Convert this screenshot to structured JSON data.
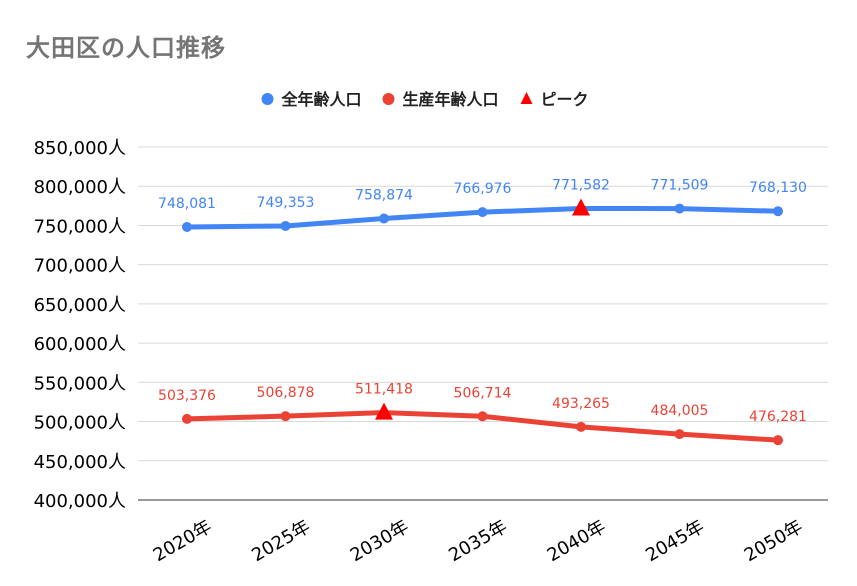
{
  "chart_data": {
    "type": "line",
    "title": "大田区の人口推移",
    "categories": [
      "2020年",
      "2025年",
      "2030年",
      "2035年",
      "2040年",
      "2045年",
      "2050年"
    ],
    "series": [
      {
        "name": "全年齢人口",
        "color": "#4285f4",
        "values": [
          748081,
          749353,
          758874,
          766976,
          771582,
          771509,
          768130
        ],
        "labels": [
          "748,081",
          "749,353",
          "758,874",
          "766,976",
          "771,582",
          "771,509",
          "768,130"
        ],
        "peak_index": 4
      },
      {
        "name": "生産年齢人口",
        "color": "#ea4335",
        "values": [
          503376,
          506878,
          511418,
          506714,
          493265,
          484005,
          476281
        ],
        "labels": [
          "503,376",
          "506,878",
          "511,418",
          "506,714",
          "493,265",
          "484,005",
          "476,281"
        ],
        "peak_index": 2
      }
    ],
    "peak_legend": {
      "name": "ピーク",
      "color": "#ff0000",
      "marker": "triangle"
    },
    "yticks": [
      "850,000人",
      "800,000人",
      "750,000人",
      "700,000人",
      "650,000人",
      "600,000人",
      "550,000人",
      "500,000人",
      "450,000人",
      "400,000人"
    ],
    "ylim": [
      400000,
      850000
    ],
    "grid": true,
    "legend_position": "top-center"
  }
}
